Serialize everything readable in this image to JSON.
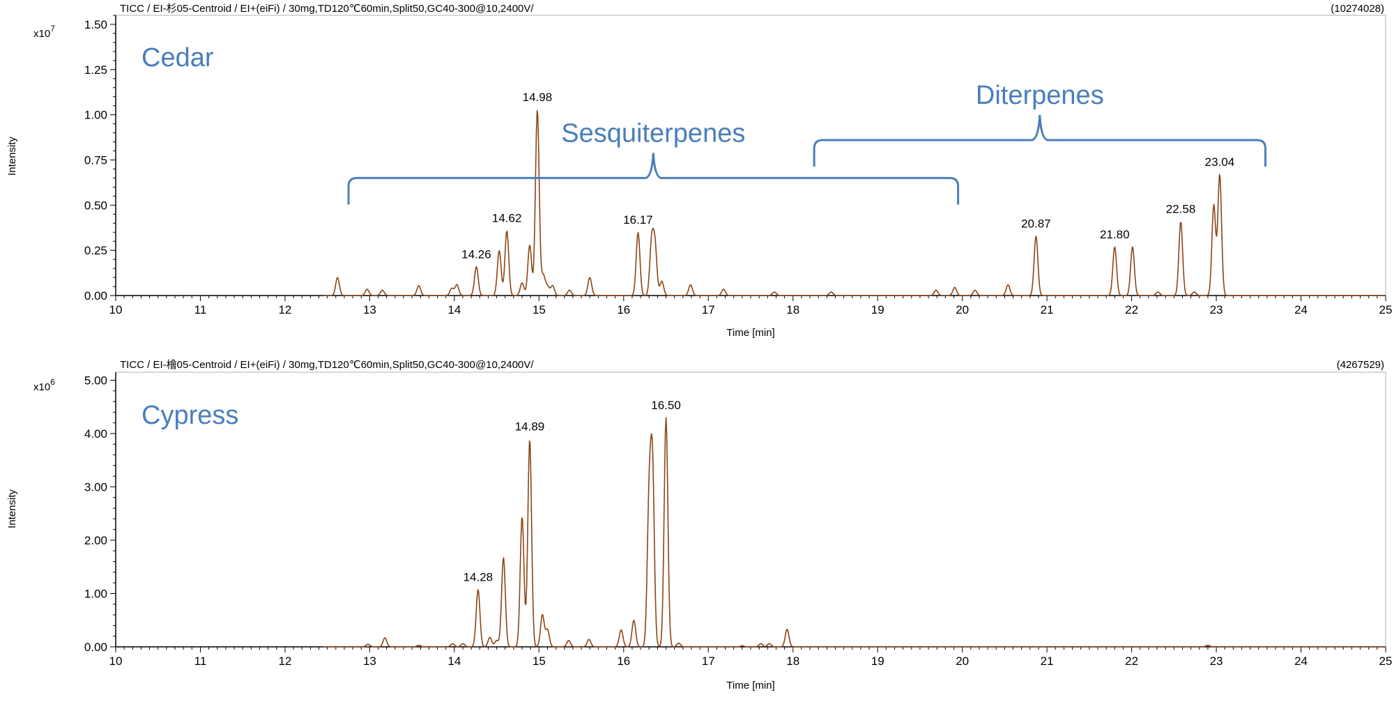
{
  "chart_data": [
    {
      "type": "line",
      "header": "TICC / EI-杉05-Centroid / EI+(eiFi) / 30mg,TD120℃60min,Split50,GC40-300@10,2400V/",
      "header_max": "(10274028)",
      "sample_label": "Cedar",
      "ylabel": "Intensity",
      "xlabel": "Time [min]",
      "y_multiplier": "x10",
      "y_exponent": "7",
      "xlim": [
        10,
        25
      ],
      "ylim": [
        0,
        1.55
      ],
      "xticks": [
        "10",
        "11",
        "12",
        "13",
        "14",
        "15",
        "16",
        "17",
        "18",
        "19",
        "20",
        "21",
        "22",
        "23",
        "24",
        "25"
      ],
      "yticks": [
        "0.00",
        "0.25",
        "0.50",
        "0.75",
        "1.00",
        "1.25",
        "1.50"
      ],
      "line_color": "#8B4513",
      "peaks": [
        [
          12.62,
          0.1
        ],
        [
          12.97,
          0.035
        ],
        [
          13.15,
          0.03
        ],
        [
          13.58,
          0.055
        ],
        [
          13.97,
          0.04
        ],
        [
          14.03,
          0.06
        ],
        [
          14.26,
          0.16
        ],
        [
          14.53,
          0.25
        ],
        [
          14.62,
          0.36
        ],
        [
          14.8,
          0.07
        ],
        [
          14.89,
          0.28
        ],
        [
          14.98,
          1.03
        ],
        [
          15.05,
          0.11
        ],
        [
          15.1,
          0.05
        ],
        [
          15.16,
          0.055
        ],
        [
          15.36,
          0.03
        ],
        [
          15.6,
          0.1
        ],
        [
          16.17,
          0.35
        ],
        [
          16.33,
          0.29
        ],
        [
          16.37,
          0.27
        ],
        [
          16.45,
          0.08
        ],
        [
          16.79,
          0.06
        ],
        [
          17.18,
          0.035
        ],
        [
          17.78,
          0.02
        ],
        [
          18.45,
          0.02
        ],
        [
          19.69,
          0.03
        ],
        [
          19.91,
          0.045
        ],
        [
          20.15,
          0.03
        ],
        [
          20.54,
          0.06
        ],
        [
          20.87,
          0.33
        ],
        [
          21.8,
          0.27
        ],
        [
          22.01,
          0.27
        ],
        [
          22.31,
          0.02
        ],
        [
          22.58,
          0.41
        ],
        [
          22.74,
          0.02
        ],
        [
          22.97,
          0.5
        ],
        [
          23.04,
          0.67
        ]
      ],
      "peak_labels": [
        {
          "x": 14.26,
          "y": 0.16,
          "text": "14.26"
        },
        {
          "x": 14.62,
          "y": 0.36,
          "text": "14.62"
        },
        {
          "x": 14.98,
          "y": 1.03,
          "text": "14.98"
        },
        {
          "x": 16.17,
          "y": 0.35,
          "text": "16.17"
        },
        {
          "x": 20.87,
          "y": 0.33,
          "text": "20.87"
        },
        {
          "x": 21.8,
          "y": 0.27,
          "text": "21.80"
        },
        {
          "x": 22.58,
          "y": 0.41,
          "text": "22.58"
        },
        {
          "x": 23.04,
          "y": 0.67,
          "text": "23.04"
        }
      ],
      "group_brackets": [
        {
          "label": "Sesquiterpenes",
          "x_start": 12.75,
          "x_end": 19.95,
          "y": 0.65
        },
        {
          "label": "Diterpenes",
          "x_start": 18.25,
          "x_end": 23.58,
          "y": 0.86
        }
      ],
      "bracket_color": "#4A7EBB"
    },
    {
      "type": "line",
      "header": "TICC / EI-檜05-Centroid / EI+(eiFi) / 30mg,TD120℃60min,Split50,GC40-300@10,2400V/",
      "header_max": "(4267529)",
      "sample_label": "Cypress",
      "ylabel": "Intensity",
      "xlabel": "Time [min]",
      "y_multiplier": "x10",
      "y_exponent": "6",
      "xlim": [
        10,
        25
      ],
      "ylim": [
        0,
        5.15
      ],
      "xticks": [
        "10",
        "11",
        "12",
        "13",
        "14",
        "15",
        "16",
        "17",
        "18",
        "19",
        "20",
        "21",
        "22",
        "23",
        "24",
        "25"
      ],
      "yticks": [
        "0.00",
        "1.00",
        "2.00",
        "3.00",
        "4.00",
        "5.00"
      ],
      "line_color": "#8B4513",
      "peaks": [
        [
          12.98,
          0.05
        ],
        [
          13.18,
          0.17
        ],
        [
          13.58,
          0.03
        ],
        [
          13.98,
          0.06
        ],
        [
          14.1,
          0.06
        ],
        [
          14.28,
          1.08
        ],
        [
          14.42,
          0.18
        ],
        [
          14.5,
          0.12
        ],
        [
          14.58,
          1.68
        ],
        [
          14.8,
          2.45
        ],
        [
          14.89,
          3.9
        ],
        [
          15.04,
          0.6
        ],
        [
          15.1,
          0.32
        ],
        [
          15.35,
          0.12
        ],
        [
          15.59,
          0.14
        ],
        [
          15.97,
          0.32
        ],
        [
          16.12,
          0.5
        ],
        [
          16.3,
          2.6
        ],
        [
          16.34,
          3.3
        ],
        [
          16.5,
          4.3
        ],
        [
          16.65,
          0.07
        ],
        [
          17.4,
          0.02
        ],
        [
          17.62,
          0.06
        ],
        [
          17.72,
          0.06
        ],
        [
          17.93,
          0.33
        ],
        [
          22.9,
          0.03
        ]
      ],
      "peak_labels": [
        {
          "x": 14.28,
          "y": 1.08,
          "text": "14.28"
        },
        {
          "x": 14.89,
          "y": 3.9,
          "text": "14.89"
        },
        {
          "x": 16.5,
          "y": 4.3,
          "text": "16.50"
        }
      ]
    }
  ]
}
